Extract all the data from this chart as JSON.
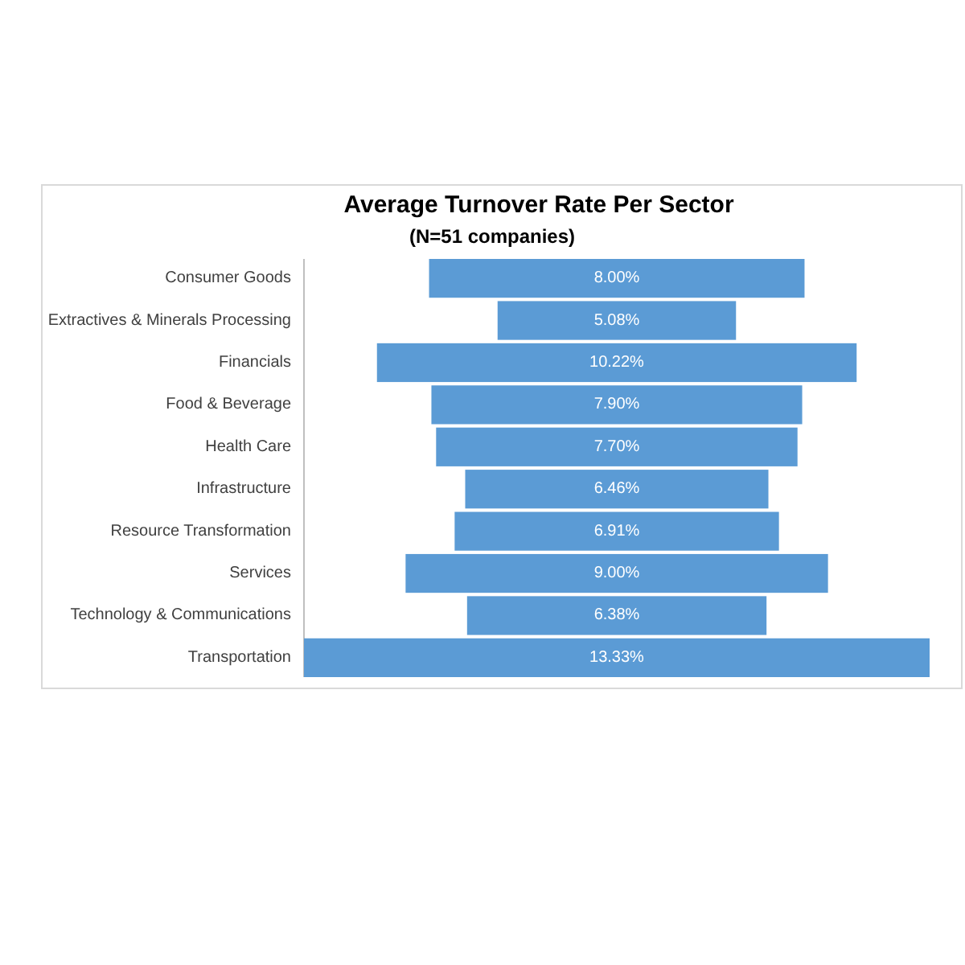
{
  "chart_data": {
    "type": "other",
    "title": "Average Turnover Rate Per Sector",
    "subtitle": "(N=51 companies)",
    "categories": [
      "Consumer Goods",
      "Extractives & Minerals Processing",
      "Financials",
      "Food & Beverage",
      "Health Care",
      "Infrastructure",
      "Resource Transformation",
      "Services",
      "Technology & Communications",
      "Transportation"
    ],
    "values": [
      8.0,
      5.08,
      10.22,
      7.9,
      7.7,
      6.46,
      6.91,
      9.0,
      6.38,
      13.33
    ],
    "value_labels": [
      "8.00%",
      "5.08%",
      "10.22%",
      "7.90%",
      "7.70%",
      "6.46%",
      "6.91%",
      "9.00%",
      "6.38%",
      "13.33%"
    ],
    "color": "#5b9bd5",
    "data_labels": true
  }
}
